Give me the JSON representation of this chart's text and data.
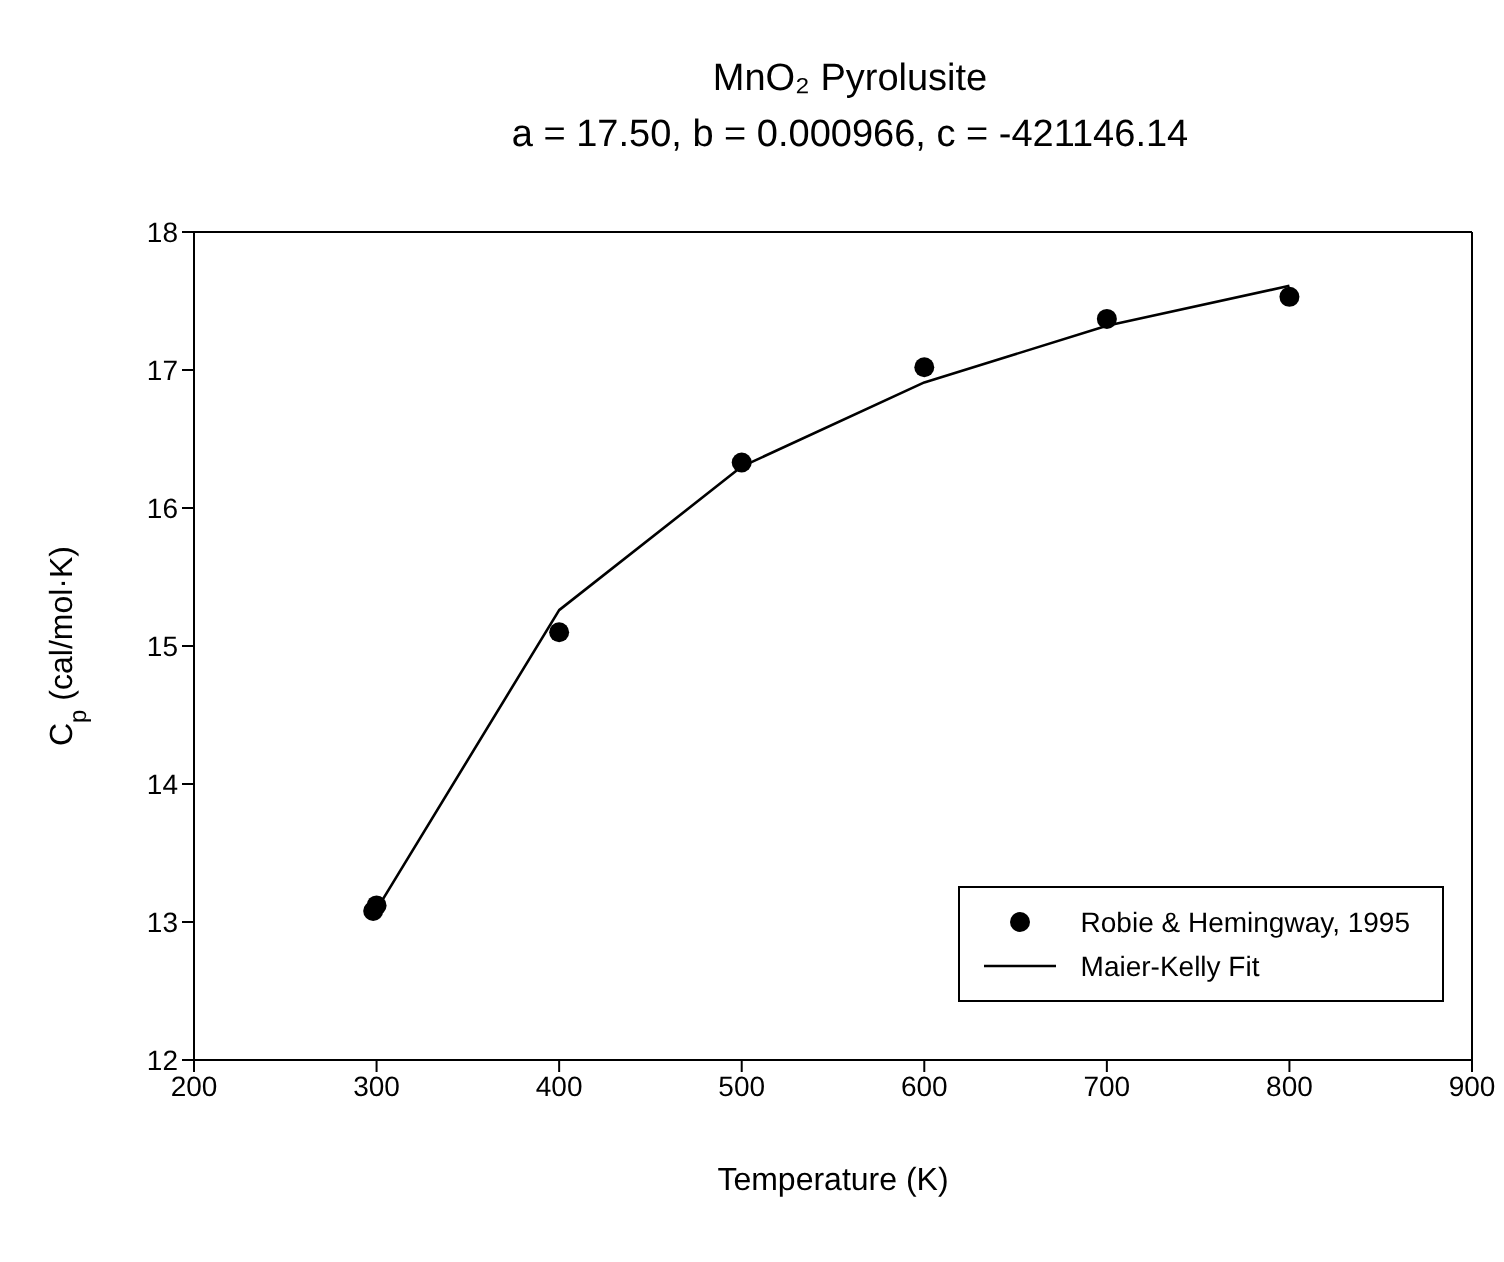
{
  "chart_data": {
    "type": "scatter",
    "title": "MnO₂ Pyrolusite",
    "subtitle": "a = 17.50,  b = 0.000966, c = -421146.14",
    "xlabel": "Temperature (K)",
    "ylabel": "C$_{p}$ (cal/mol·K)",
    "xlim": [
      200,
      900
    ],
    "xticks": [
      200,
      300,
      400,
      500,
      600,
      700,
      800,
      900
    ],
    "ylim": [
      12,
      18
    ],
    "yticks": [
      12,
      13,
      14,
      15,
      16,
      17,
      18
    ],
    "legend": "bottom right",
    "series": [
      {
        "name": "Robie & Hemingway, 1995",
        "color": "#000000",
        "marker": "circle",
        "x": [
          298.15,
          300,
          400,
          500,
          600,
          700,
          800
        ],
        "values": [
          13.08,
          13.12,
          15.1,
          16.33,
          17.02,
          17.37,
          17.53
        ]
      },
      {
        "name": "Maier-Kelly Fit",
        "type": "line",
        "color": "#000000",
        "marker": "none",
        "line_style": "solid",
        "x": [
          298.15,
          400,
          500,
          600,
          700,
          800
        ],
        "values": [
          13.05,
          15.26,
          16.3,
          16.91,
          17.32,
          17.61
        ]
      }
    ]
  }
}
